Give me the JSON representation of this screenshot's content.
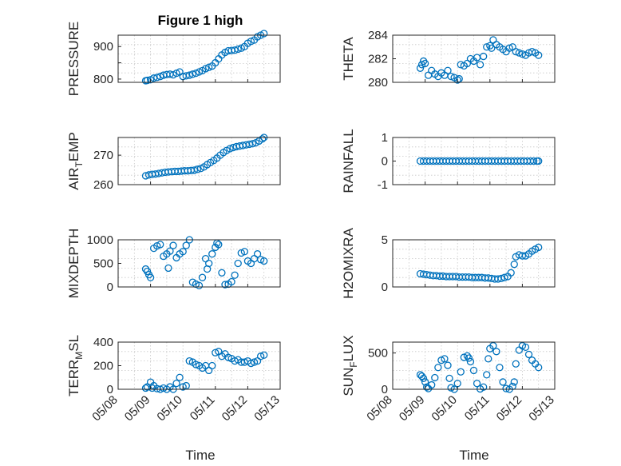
{
  "figure": {
    "title": "Figure 1 high",
    "xlabel": "Time",
    "x_tick_labels": [
      "05/08",
      "05/09",
      "05/10",
      "05/11",
      "05/12",
      "05/13"
    ]
  },
  "chart_data": [
    {
      "type": "scatter",
      "name": "PRESSURE",
      "ylabel": "PRESSURE",
      "ylim": [
        790,
        935
      ],
      "yticks": [
        800,
        850,
        900
      ],
      "ytick_labels": [
        "800",
        "",
        "900"
      ],
      "xlim": [
        "05/08",
        "05/13"
      ],
      "grid": true,
      "title": "Figure 1 high",
      "series": [
        {
          "x_days": [
            0.85,
            0.9,
            1.0,
            1.1,
            1.2,
            1.3,
            1.4,
            1.5,
            1.6,
            1.7,
            1.8,
            1.9,
            2.0,
            2.1,
            2.2,
            2.3,
            2.4,
            2.5,
            2.6,
            2.7,
            2.8,
            2.9,
            3.0,
            3.1,
            3.2,
            3.3,
            3.4,
            3.5,
            3.6,
            3.7,
            3.8,
            3.9,
            4.0,
            4.1,
            4.2,
            4.3,
            4.4,
            4.5
          ],
          "values": [
            795,
            796,
            798,
            803,
            805,
            808,
            812,
            814,
            815,
            813,
            818,
            822,
            808,
            810,
            812,
            815,
            818,
            822,
            826,
            832,
            836,
            840,
            850,
            862,
            874,
            882,
            887,
            888,
            889,
            892,
            895,
            900,
            910,
            916,
            920,
            930,
            935,
            940
          ]
        }
      ]
    },
    {
      "type": "scatter",
      "name": "THETA",
      "ylabel": "THETA",
      "ylim": [
        280,
        284
      ],
      "yticks": [
        280,
        282,
        284
      ],
      "ytick_labels": [
        "280",
        "282",
        "284"
      ],
      "xlim": [
        "05/08",
        "05/13"
      ],
      "grid": true,
      "series": [
        {
          "x_days": [
            0.85,
            0.9,
            0.95,
            1.0,
            1.1,
            1.2,
            1.3,
            1.4,
            1.5,
            1.6,
            1.7,
            1.8,
            1.9,
            2.0,
            2.05,
            2.1,
            2.2,
            2.3,
            2.4,
            2.5,
            2.6,
            2.7,
            2.8,
            2.9,
            3.0,
            3.05,
            3.1,
            3.2,
            3.3,
            3.4,
            3.5,
            3.6,
            3.7,
            3.8,
            3.9,
            4.0,
            4.1,
            4.2,
            4.3,
            4.4,
            4.5
          ],
          "values": [
            281.2,
            281.5,
            281.8,
            281.6,
            280.6,
            281.0,
            280.7,
            280.5,
            280.8,
            280.6,
            281.0,
            280.5,
            280.4,
            280.2,
            280.3,
            281.5,
            281.4,
            281.6,
            282.0,
            281.8,
            282.1,
            281.5,
            282.2,
            283.0,
            283.1,
            282.9,
            283.6,
            283.2,
            283.0,
            282.8,
            282.6,
            282.9,
            283.0,
            282.6,
            282.5,
            282.4,
            282.3,
            282.5,
            282.6,
            282.5,
            282.3
          ]
        }
      ]
    },
    {
      "type": "scatter",
      "name": "AIR_TEMP",
      "ylabel": "AIR_TEMP",
      "ylim": [
        260,
        276
      ],
      "yticks": [
        260,
        270
      ],
      "ytick_labels": [
        "260",
        "270"
      ],
      "xlim": [
        "05/08",
        "05/13"
      ],
      "grid": true,
      "series": [
        {
          "x_days": [
            0.85,
            0.95,
            1.05,
            1.15,
            1.25,
            1.35,
            1.45,
            1.55,
            1.65,
            1.75,
            1.85,
            1.95,
            2.05,
            2.15,
            2.25,
            2.35,
            2.45,
            2.55,
            2.65,
            2.75,
            2.85,
            2.95,
            3.05,
            3.15,
            3.25,
            3.35,
            3.45,
            3.55,
            3.65,
            3.75,
            3.85,
            3.95,
            4.05,
            4.15,
            4.25,
            4.35,
            4.45,
            4.5
          ],
          "values": [
            263,
            263.3,
            263.5,
            263.6,
            263.8,
            264.0,
            264.2,
            264.3,
            264.4,
            264.5,
            264.5,
            264.6,
            264.7,
            264.7,
            264.8,
            264.9,
            265.2,
            265.5,
            266.0,
            266.8,
            267.5,
            268.2,
            269.0,
            270.0,
            270.9,
            271.6,
            272.2,
            272.6,
            272.9,
            273.1,
            273.3,
            273.5,
            273.7,
            273.9,
            274.2,
            274.8,
            275.5,
            276.0
          ]
        }
      ]
    },
    {
      "type": "scatter",
      "name": "RAINFALL",
      "ylabel": "RAINFALL",
      "ylim": [
        -1,
        1
      ],
      "yticks": [
        -1,
        0,
        1
      ],
      "ytick_labels": [
        "-1",
        "0",
        "1"
      ],
      "xlim": [
        "05/08",
        "05/13"
      ],
      "grid": true,
      "series": [
        {
          "x_days": [
            0.85,
            0.95,
            1.05,
            1.15,
            1.25,
            1.35,
            1.45,
            1.55,
            1.65,
            1.75,
            1.85,
            1.95,
            2.05,
            2.15,
            2.25,
            2.35,
            2.45,
            2.55,
            2.65,
            2.75,
            2.85,
            2.95,
            3.05,
            3.15,
            3.25,
            3.35,
            3.45,
            3.55,
            3.65,
            3.75,
            3.85,
            3.95,
            4.05,
            4.15,
            4.25,
            4.35,
            4.45,
            4.5
          ],
          "values": [
            0,
            0,
            0,
            0,
            0,
            0,
            0,
            0,
            0,
            0,
            0,
            0,
            0,
            0,
            0,
            0,
            0,
            0,
            0,
            0,
            0,
            0,
            0,
            0,
            0,
            0,
            0,
            0,
            0,
            0,
            0,
            0,
            0,
            0,
            0,
            0,
            0,
            0
          ]
        }
      ]
    },
    {
      "type": "scatter",
      "name": "MIXDEPTH",
      "ylabel": "MIXDEPTH",
      "ylim": [
        0,
        1000
      ],
      "yticks": [
        0,
        500,
        1000
      ],
      "ytick_labels": [
        "0",
        "500",
        "1000"
      ],
      "xlim": [
        "05/08",
        "05/13"
      ],
      "grid": true,
      "series": [
        {
          "x_days": [
            0.85,
            0.9,
            0.95,
            1.0,
            1.1,
            1.2,
            1.3,
            1.4,
            1.5,
            1.55,
            1.6,
            1.7,
            1.8,
            1.9,
            2.0,
            2.1,
            2.2,
            2.3,
            2.4,
            2.5,
            2.6,
            2.7,
            2.75,
            2.8,
            2.9,
            3.0,
            3.05,
            3.1,
            3.2,
            3.3,
            3.4,
            3.5,
            3.6,
            3.7,
            3.8,
            3.9,
            4.0,
            4.1,
            4.2,
            4.3,
            4.4,
            4.5
          ],
          "values": [
            380,
            330,
            260,
            200,
            820,
            870,
            900,
            650,
            700,
            400,
            760,
            880,
            620,
            700,
            750,
            880,
            1000,
            100,
            60,
            30,
            200,
            600,
            380,
            500,
            700,
            840,
            930,
            900,
            300,
            50,
            60,
            110,
            250,
            500,
            720,
            750,
            550,
            500,
            600,
            700,
            580,
            550
          ]
        }
      ]
    },
    {
      "type": "scatter",
      "name": "H2OMIXRA",
      "ylabel": "H2OMIXRA",
      "ylim": [
        0,
        5
      ],
      "yticks": [
        0,
        5
      ],
      "ytick_labels": [
        "0",
        "5"
      ],
      "xlim": [
        "05/08",
        "05/13"
      ],
      "grid": true,
      "series": [
        {
          "x_days": [
            0.85,
            0.95,
            1.05,
            1.15,
            1.25,
            1.35,
            1.45,
            1.55,
            1.65,
            1.75,
            1.85,
            1.95,
            2.05,
            2.15,
            2.25,
            2.35,
            2.45,
            2.55,
            2.65,
            2.75,
            2.85,
            2.95,
            3.05,
            3.15,
            3.25,
            3.35,
            3.45,
            3.55,
            3.65,
            3.75,
            3.8,
            3.9,
            4.0,
            4.1,
            4.2,
            4.3,
            4.4,
            4.5
          ],
          "values": [
            1.4,
            1.35,
            1.3,
            1.25,
            1.2,
            1.2,
            1.15,
            1.15,
            1.1,
            1.1,
            1.1,
            1.1,
            1.05,
            1.05,
            1.05,
            1.05,
            1.0,
            1.0,
            1.0,
            1.0,
            0.95,
            0.95,
            0.9,
            0.85,
            0.85,
            0.9,
            1.0,
            1.1,
            1.5,
            2.4,
            3.2,
            3.4,
            3.3,
            3.3,
            3.5,
            3.8,
            4.0,
            4.2
          ]
        }
      ]
    },
    {
      "type": "scatter",
      "name": "TERR_MSL",
      "ylabel": "TERR_MSL",
      "ylim": [
        0,
        400
      ],
      "yticks": [
        0,
        200,
        400
      ],
      "ytick_labels": [
        "0",
        "200",
        "400"
      ],
      "xlim": [
        "05/08",
        "05/13"
      ],
      "grid": true,
      "series": [
        {
          "x_days": [
            0.85,
            0.9,
            1.0,
            1.05,
            1.1,
            1.2,
            1.3,
            1.4,
            1.5,
            1.6,
            1.7,
            1.8,
            1.9,
            2.0,
            2.1,
            2.2,
            2.3,
            2.4,
            2.5,
            2.6,
            2.7,
            2.8,
            2.9,
            3.0,
            3.1,
            3.2,
            3.3,
            3.4,
            3.5,
            3.6,
            3.7,
            3.8,
            3.9,
            4.0,
            4.1,
            4.2,
            4.3,
            4.4,
            4.5
          ],
          "values": [
            10,
            20,
            60,
            10,
            30,
            5,
            0,
            10,
            0,
            20,
            0,
            50,
            100,
            20,
            30,
            240,
            230,
            210,
            200,
            180,
            200,
            160,
            200,
            310,
            320,
            280,
            300,
            270,
            260,
            240,
            250,
            230,
            230,
            240,
            220,
            230,
            240,
            280,
            290
          ]
        }
      ]
    },
    {
      "type": "scatter",
      "name": "SUN_FLUX",
      "ylabel": "SUN_FLUX",
      "ylim": [
        0,
        650
      ],
      "yticks": [
        0,
        500
      ],
      "ytick_labels": [
        "0",
        "500"
      ],
      "xlim": [
        "05/08",
        "05/13"
      ],
      "grid": true,
      "series": [
        {
          "x_days": [
            0.85,
            0.9,
            0.95,
            1.0,
            1.05,
            1.1,
            1.2,
            1.3,
            1.4,
            1.5,
            1.6,
            1.7,
            1.75,
            1.8,
            1.9,
            2.0,
            2.1,
            2.2,
            2.3,
            2.35,
            2.4,
            2.5,
            2.6,
            2.7,
            2.8,
            2.9,
            2.95,
            3.0,
            3.1,
            3.2,
            3.3,
            3.4,
            3.5,
            3.6,
            3.7,
            3.75,
            3.8,
            3.9,
            4.0,
            4.1,
            4.2,
            4.3,
            4.4,
            4.5
          ],
          "values": [
            200,
            180,
            150,
            100,
            30,
            10,
            60,
            160,
            300,
            400,
            420,
            330,
            150,
            20,
            0,
            80,
            240,
            440,
            460,
            430,
            380,
            260,
            80,
            5,
            30,
            200,
            420,
            560,
            600,
            520,
            300,
            100,
            10,
            0,
            40,
            100,
            350,
            540,
            600,
            580,
            480,
            400,
            350,
            300
          ]
        }
      ]
    }
  ]
}
